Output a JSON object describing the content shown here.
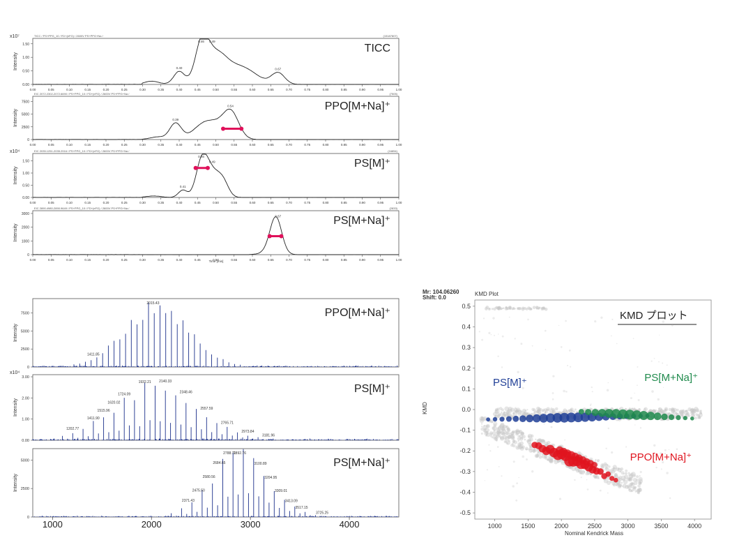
{
  "colors": {
    "trace": "#222222",
    "spectrum": "#1a2f8a",
    "fwhm_marker": "#e0105a",
    "ps_m": "#1f3e96",
    "ps_mna": "#1f8a4c",
    "ppo_mna": "#e0141e",
    "background_points": "#c8c8c8"
  },
  "chromatograms": {
    "time_ticks": [
      "0.00",
      "0.05",
      "0.10",
      "0.15",
      "0.20",
      "0.25",
      "0.30",
      "0.35",
      "0.40",
      "0.45",
      "0.50",
      "0.55",
      "0.60",
      "0.65",
      "0.70",
      "0.75",
      "0.80",
      "0.85",
      "0.90",
      "0.95",
      "1.00"
    ],
    "xlabel": "Time [min]",
    "ylabel": "Intensity",
    "panels": [
      {
        "label": "TICC",
        "header_left": "TICC / PS+PPG_10 / FD+(eFG) / 2600V PS+PPG+Na /",
        "header_right": "(15187807)",
        "scale": "x10⁷",
        "yticks": [
          "0.00",
          "0.50",
          "1.00",
          "1.50"
        ],
        "ylim": [
          0,
          1.7
        ],
        "peaks": [
          {
            "t": 0.4,
            "label": "0.40"
          },
          {
            "t": 0.46,
            "label": "0.46"
          },
          {
            "t": 0.49,
            "label": "0.49"
          },
          {
            "t": 0.67,
            "label": "0.67"
          }
        ]
      },
      {
        "label": "PPO[M+Na]⁺",
        "header_left": "EIC 2072.2302-2072.6690 / PS+PPG_10 / FD+(eFG) / 2600V PS+PPG+Na /",
        "header_right": "(7505)",
        "scale": "",
        "yticks": [
          "0",
          "2500",
          "5000",
          "7500"
        ],
        "ylim": [
          0,
          8500
        ],
        "peaks": [
          {
            "t": 0.39,
            "label": "0.39"
          },
          {
            "t": 0.54,
            "label": "0.54"
          }
        ],
        "fwhm": [
          0.52,
          0.57
        ]
      },
      {
        "label": "PS[M]⁺",
        "header_left": "EIC 2035.1251-2035.2916 / PS+PPG_10 / FD+(eFG) / 2600V PS+PPG+Na /",
        "header_right": "(16854)",
        "scale": "x10⁴",
        "yticks": [
          "0.00",
          "0.50",
          "1.00",
          "1.50"
        ],
        "ylim": [
          0,
          1.8
        ],
        "peaks": [
          {
            "t": 0.41,
            "label": "0.41"
          },
          {
            "t": 0.46,
            "label": "0.46"
          },
          {
            "t": 0.49,
            "label": "0.49"
          }
        ],
        "fwhm": [
          0.445,
          0.478
        ]
      },
      {
        "label": "PS[M+Na]⁺",
        "header_left": "EIC 2890.4980-2890.9649 / PS+PPG_10 / FD+(eFG) / 2600V PS+PPG+Na /",
        "header_right": "(2833)",
        "scale": "",
        "yticks": [
          "0",
          "1000",
          "2000",
          "3000"
        ],
        "ylim": [
          0,
          3200
        ],
        "peaks": [
          {
            "t": 0.67,
            "label": "0.67"
          }
        ],
        "fwhm": [
          0.647,
          0.679
        ]
      }
    ]
  },
  "spectra": {
    "xticks": [
      "1000",
      "2000",
      "3000",
      "4000"
    ],
    "xlim": [
      800,
      4500
    ],
    "ylabel": "Intensity",
    "panels": [
      {
        "label": "PPO[M+Na]⁺",
        "scale": "",
        "yticks": [
          "0",
          "2500",
          "5000",
          "7500"
        ],
        "ylim": [
          0,
          9500
        ],
        "annotations": [
          {
            "mz": 1411.85,
            "label": "1411.85"
          },
          {
            "mz": 2015.43,
            "label": "2015.43"
          }
        ]
      },
      {
        "label": "PS[M]⁺",
        "scale": "x10⁴",
        "yticks": [
          "0.00",
          "1.00",
          "2.00",
          "3.00"
        ],
        "ylim": [
          0,
          3.1
        ],
        "annotations": [
          {
            "mz": 1202.77,
            "label": "1202.77"
          },
          {
            "mz": 1411.9,
            "label": "1411.90"
          },
          {
            "mz": 1515.96,
            "label": "1515.96"
          },
          {
            "mz": 1620.02,
            "label": "1620.02"
          },
          {
            "mz": 1724.09,
            "label": "1724.09"
          },
          {
            "mz": 1932.21,
            "label": "1932.21"
          },
          {
            "mz": 2140.33,
            "label": "2140.33"
          },
          {
            "mz": 2348.46,
            "label": "2348.46"
          },
          {
            "mz": 2557.59,
            "label": "2557.59"
          },
          {
            "mz": 2765.71,
            "label": "2765.71"
          },
          {
            "mz": 2973.84,
            "label": "2973.84"
          },
          {
            "mz": 3181.96,
            "label": "3181.96"
          }
        ]
      },
      {
        "label": "PS[M+Na]⁺",
        "scale": "",
        "yticks": [
          "0",
          "2500",
          "5000"
        ],
        "ylim": [
          0,
          6000
        ],
        "annotations": [
          {
            "mz": 2371.43,
            "label": "2371.43"
          },
          {
            "mz": 2475.5,
            "label": "2475.50"
          },
          {
            "mz": 2580.56,
            "label": "2580.56"
          },
          {
            "mz": 2684.65,
            "label": "2684.65"
          },
          {
            "mz": 2788.71,
            "label": "2788.71"
          },
          {
            "mz": 2892.76,
            "label": "2892.76"
          },
          {
            "mz": 3100.89,
            "label": "3100.89"
          },
          {
            "mz": 3204.95,
            "label": "3204.95"
          },
          {
            "mz": 3309.01,
            "label": "3309.01"
          },
          {
            "mz": 3413.09,
            "label": "3413.09"
          },
          {
            "mz": 3517.15,
            "label": "3517.15"
          },
          {
            "mz": 3725.25,
            "label": "3725.25"
          }
        ]
      }
    ]
  },
  "kmd": {
    "info_line1": "Mr: 104.06260",
    "info_line2": "Shift: 0.0",
    "plot_title": "KMD Plot",
    "legend_title": "KMD プロット",
    "xlabel": "Nominal Kendrick Mass",
    "ylabel": "KMD",
    "xticks": [
      "1000",
      "1500",
      "2000",
      "2500",
      "3000",
      "3500",
      "4000"
    ],
    "xlim": [
      700,
      4250
    ],
    "yticks": [
      "0.5",
      "0.4",
      "0.3",
      "0.2",
      "0.1",
      "0.0",
      "-0.1",
      "-0.2",
      "-0.3",
      "-0.4",
      "-0.5"
    ],
    "ylim": [
      -0.53,
      0.53
    ],
    "series": [
      {
        "name": "PS[M]⁺",
        "kmd_start": -0.048,
        "kmd_end": -0.03,
        "mass_range": [
          900,
          3300
        ]
      },
      {
        "name": "PS[M+Na]⁺",
        "kmd_start": -0.01,
        "kmd_end": -0.045,
        "mass_range": [
          2300,
          4050
        ]
      },
      {
        "name": "PPO[M+Na]⁺",
        "kmd_start": -0.17,
        "kmd_end": -0.34,
        "mass_range": [
          1600,
          2850
        ]
      }
    ]
  }
}
